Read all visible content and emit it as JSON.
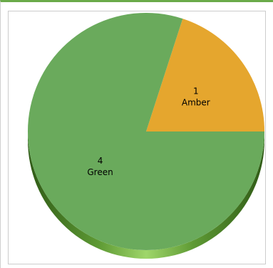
{
  "colors": {
    "panel_accent": "#6aaa4a",
    "green": "#6aaa5c",
    "amber": "#e5a62e",
    "green_side_dark": "#3f6b22",
    "green_side_light": "#8fc95a"
  },
  "chart_data": {
    "type": "pie",
    "title": "",
    "three_d": true,
    "slices": [
      {
        "label": "Amber",
        "value": 1,
        "value_label": "1",
        "color": "#e5a62e"
      },
      {
        "label": "Green",
        "value": 4,
        "value_label": "4",
        "color": "#6aaa5c"
      }
    ]
  }
}
